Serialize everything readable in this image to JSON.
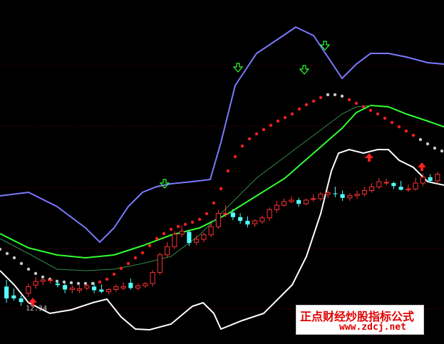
{
  "chart_data": {
    "type": "candlestick",
    "title": "",
    "ylim": [
      11.9,
      16.4
    ],
    "grid_levels": [
      15.59,
      14.77,
      13.94,
      13.12,
      12.3
    ],
    "annotation_low": "12.34",
    "colors": {
      "up": "#ff3232",
      "down": "#54ffff",
      "upper_band": "#7a7aff",
      "lower_band": "#ffffff",
      "mid_line": "#30ff30",
      "dim_line": "#2f8c4a",
      "dot_up": "#ff1e1e",
      "dot_down": "#c8c8c8",
      "grid": "#7a0000",
      "buy_arrow": "#ff2020",
      "sell_arrow": "#30ff30"
    },
    "candles": [
      [
        12.6,
        12.44,
        12.69,
        12.38
      ],
      [
        12.48,
        12.44,
        12.57,
        12.41
      ],
      [
        12.44,
        12.39,
        12.48,
        12.34
      ],
      [
        12.51,
        12.6,
        12.64,
        12.46
      ],
      [
        12.62,
        12.67,
        12.73,
        12.57
      ],
      [
        12.67,
        12.69,
        12.72,
        12.62
      ],
      [
        12.69,
        12.69,
        12.71,
        12.64
      ],
      [
        12.64,
        12.62,
        12.69,
        12.59
      ],
      [
        12.62,
        12.56,
        12.64,
        12.51
      ],
      [
        12.56,
        12.58,
        12.62,
        12.51
      ],
      [
        12.55,
        12.57,
        12.62,
        12.51
      ],
      [
        12.58,
        12.61,
        12.65,
        12.55
      ],
      [
        12.6,
        12.55,
        12.66,
        12.51
      ],
      [
        12.56,
        12.53,
        12.63,
        12.51
      ],
      [
        12.53,
        12.56,
        12.58,
        12.5
      ],
      [
        12.56,
        12.6,
        12.63,
        12.53
      ],
      [
        12.58,
        12.6,
        12.66,
        12.55
      ],
      [
        12.65,
        12.58,
        12.71,
        12.56
      ],
      [
        12.58,
        12.61,
        12.64,
        12.55
      ],
      [
        12.61,
        12.64,
        12.66,
        12.58
      ],
      [
        12.64,
        12.79,
        12.82,
        12.6
      ],
      [
        12.79,
        13.03,
        13.06,
        12.76
      ],
      [
        13.03,
        13.14,
        13.2,
        12.99
      ],
      [
        13.14,
        13.31,
        13.35,
        13.11
      ],
      [
        13.31,
        13.35,
        13.42,
        13.27
      ],
      [
        13.34,
        13.19,
        13.36,
        13.15
      ],
      [
        13.2,
        13.24,
        13.29,
        13.16
      ],
      [
        13.24,
        13.3,
        13.33,
        13.2
      ],
      [
        13.3,
        13.41,
        13.46,
        13.27
      ],
      [
        13.41,
        13.59,
        13.64,
        13.38
      ],
      [
        13.58,
        13.59,
        13.7,
        13.54
      ],
      [
        13.6,
        13.54,
        13.65,
        13.5
      ],
      [
        13.54,
        13.49,
        13.59,
        13.45
      ],
      [
        13.49,
        13.44,
        13.55,
        13.4
      ],
      [
        13.45,
        13.49,
        13.51,
        13.41
      ],
      [
        13.48,
        13.53,
        13.56,
        13.45
      ],
      [
        13.53,
        13.64,
        13.67,
        13.49
      ],
      [
        13.64,
        13.7,
        13.76,
        13.6
      ],
      [
        13.7,
        13.75,
        13.79,
        13.68
      ],
      [
        13.75,
        13.77,
        13.82,
        13.73
      ],
      [
        13.77,
        13.72,
        13.8,
        13.68
      ],
      [
        13.72,
        13.77,
        13.79,
        13.7
      ],
      [
        13.78,
        13.79,
        13.85,
        13.75
      ],
      [
        13.79,
        13.85,
        13.88,
        13.76
      ],
      [
        13.85,
        13.87,
        13.9,
        13.8
      ],
      [
        13.86,
        13.85,
        13.95,
        13.81
      ],
      [
        13.85,
        13.8,
        13.9,
        13.76
      ],
      [
        13.8,
        13.83,
        13.86,
        13.76
      ],
      [
        13.83,
        13.85,
        13.9,
        13.79
      ],
      [
        13.85,
        13.9,
        13.95,
        13.82
      ],
      [
        13.9,
        13.95,
        14.0,
        13.87
      ],
      [
        13.95,
        14.02,
        14.07,
        13.92
      ],
      [
        14.01,
        14.01,
        14.06,
        13.97
      ],
      [
        14.0,
        13.96,
        14.02,
        13.92
      ],
      [
        13.95,
        13.91,
        14.03,
        13.9
      ],
      [
        13.91,
        13.92,
        13.98,
        13.88
      ],
      [
        13.92,
        14.0,
        14.07,
        13.9
      ],
      [
        14.0,
        14.08,
        14.13,
        13.96
      ],
      [
        14.08,
        14.03,
        14.12,
        14.0
      ],
      [
        14.03,
        14.12,
        14.15,
        13.99
      ]
    ]
  }
}
